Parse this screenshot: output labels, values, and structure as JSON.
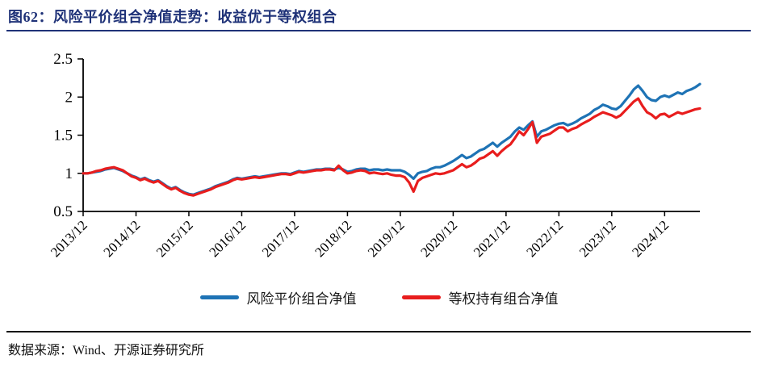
{
  "figure": {
    "title": "图62：风险平价组合净值走势：收益优于等权组合",
    "source": "数据来源：Wind、开源证券研究所"
  },
  "colors": {
    "title_navy": "#1F3278",
    "series_blue": "#1E73B5",
    "series_red": "#E81D1D",
    "axis": "#000000"
  },
  "legend": [
    {
      "label": "风险平价组合净值",
      "color": "#1E73B5"
    },
    {
      "label": "等权持有组合净值",
      "color": "#E81D1D"
    }
  ],
  "chart_data": {
    "type": "line",
    "x_start": "2013/12",
    "x_interval": "monthly",
    "x_tick_labels": [
      "2013/12",
      "2014/12",
      "2015/12",
      "2016/12",
      "2017/12",
      "2018/12",
      "2019/12",
      "2020/12",
      "2021/12",
      "2022/12",
      "2023/12",
      "2024/12"
    ],
    "x_tick_month_index": [
      0,
      12,
      24,
      36,
      48,
      60,
      72,
      84,
      96,
      108,
      120,
      132
    ],
    "ylim": [
      0.5,
      2.5
    ],
    "y_ticks": [
      0.5,
      1,
      1.5,
      2,
      2.5
    ],
    "grid": false,
    "legend_position": "bottom",
    "series": [
      {
        "name": "风险平价组合净值",
        "color": "#1E73B5",
        "values": [
          1.0,
          1.0,
          1.01,
          1.02,
          1.03,
          1.05,
          1.06,
          1.07,
          1.05,
          1.03,
          1.0,
          0.97,
          0.95,
          0.92,
          0.94,
          0.91,
          0.89,
          0.91,
          0.87,
          0.83,
          0.8,
          0.82,
          0.78,
          0.75,
          0.73,
          0.72,
          0.74,
          0.76,
          0.78,
          0.8,
          0.83,
          0.85,
          0.87,
          0.89,
          0.92,
          0.94,
          0.93,
          0.94,
          0.95,
          0.96,
          0.95,
          0.96,
          0.97,
          0.98,
          0.99,
          1.0,
          1.0,
          0.99,
          1.01,
          1.03,
          1.02,
          1.03,
          1.04,
          1.05,
          1.05,
          1.06,
          1.06,
          1.05,
          1.07,
          1.05,
          1.02,
          1.03,
          1.05,
          1.06,
          1.06,
          1.04,
          1.05,
          1.05,
          1.04,
          1.05,
          1.04,
          1.04,
          1.04,
          1.02,
          0.98,
          0.93,
          1.0,
          1.02,
          1.03,
          1.06,
          1.08,
          1.08,
          1.1,
          1.13,
          1.16,
          1.2,
          1.24,
          1.2,
          1.22,
          1.26,
          1.3,
          1.32,
          1.36,
          1.4,
          1.35,
          1.4,
          1.44,
          1.48,
          1.55,
          1.6,
          1.57,
          1.63,
          1.68,
          1.48,
          1.55,
          1.57,
          1.6,
          1.63,
          1.65,
          1.66,
          1.63,
          1.65,
          1.68,
          1.72,
          1.75,
          1.78,
          1.83,
          1.86,
          1.9,
          1.88,
          1.85,
          1.84,
          1.88,
          1.95,
          2.02,
          2.1,
          2.15,
          2.08,
          2.0,
          1.96,
          1.95,
          2.0,
          2.02,
          2.0,
          2.03,
          2.06,
          2.04,
          2.08,
          2.1,
          2.13,
          2.17
        ]
      },
      {
        "name": "等权持有组合净值",
        "color": "#E81D1D",
        "values": [
          1.0,
          1.0,
          1.01,
          1.03,
          1.04,
          1.06,
          1.07,
          1.08,
          1.06,
          1.04,
          1.0,
          0.96,
          0.94,
          0.91,
          0.93,
          0.9,
          0.88,
          0.9,
          0.86,
          0.82,
          0.79,
          0.81,
          0.77,
          0.74,
          0.72,
          0.71,
          0.73,
          0.75,
          0.77,
          0.79,
          0.82,
          0.84,
          0.86,
          0.88,
          0.91,
          0.93,
          0.92,
          0.93,
          0.94,
          0.95,
          0.94,
          0.95,
          0.96,
          0.97,
          0.98,
          0.99,
          0.99,
          0.98,
          1.0,
          1.02,
          1.01,
          1.02,
          1.03,
          1.04,
          1.04,
          1.05,
          1.05,
          1.04,
          1.1,
          1.04,
          1.0,
          1.01,
          1.03,
          1.04,
          1.03,
          1.0,
          1.01,
          1.0,
          0.99,
          1.0,
          0.98,
          0.97,
          0.97,
          0.95,
          0.88,
          0.76,
          0.9,
          0.94,
          0.96,
          0.98,
          1.0,
          0.99,
          1.0,
          1.02,
          1.04,
          1.08,
          1.12,
          1.08,
          1.1,
          1.14,
          1.19,
          1.21,
          1.25,
          1.29,
          1.23,
          1.29,
          1.34,
          1.38,
          1.46,
          1.55,
          1.5,
          1.58,
          1.67,
          1.4,
          1.48,
          1.5,
          1.52,
          1.56,
          1.6,
          1.6,
          1.55,
          1.58,
          1.6,
          1.64,
          1.67,
          1.7,
          1.74,
          1.77,
          1.8,
          1.78,
          1.76,
          1.73,
          1.76,
          1.82,
          1.88,
          1.94,
          1.98,
          1.88,
          1.8,
          1.77,
          1.72,
          1.77,
          1.78,
          1.74,
          1.77,
          1.8,
          1.78,
          1.8,
          1.82,
          1.84,
          1.85
        ]
      }
    ]
  }
}
